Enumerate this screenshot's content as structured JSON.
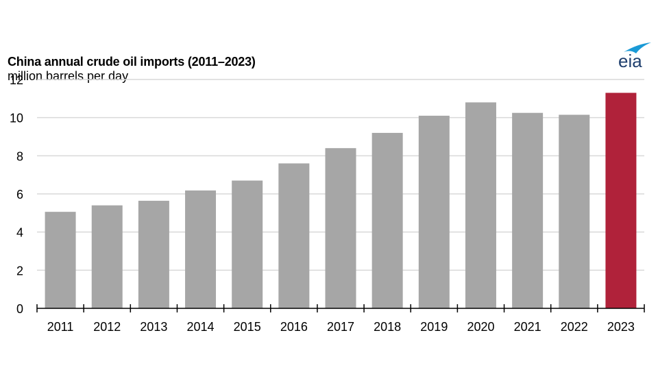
{
  "logo": {
    "text": "eia",
    "accent_color": "#1a9ad6",
    "text_color": "#1f3f6e"
  },
  "chart_data": {
    "type": "bar",
    "title": "China annual crude oil imports (2011–2023)",
    "subtitle": "million barrels per day",
    "xlabel": "",
    "ylabel": "million barrels per day",
    "categories": [
      "2011",
      "2012",
      "2013",
      "2014",
      "2015",
      "2016",
      "2017",
      "2018",
      "2019",
      "2020",
      "2021",
      "2022",
      "2023"
    ],
    "values": [
      5.06,
      5.4,
      5.64,
      6.18,
      6.7,
      7.6,
      8.4,
      9.2,
      10.1,
      10.8,
      10.25,
      10.15,
      11.3
    ],
    "highlight": {
      "category": "2023",
      "color": "#b0223a"
    },
    "bar_color": "#a6a6a6",
    "ylim": [
      0,
      12
    ],
    "yticks": [
      0,
      2,
      4,
      6,
      8,
      10,
      12
    ],
    "grid": true,
    "legend": "none"
  }
}
